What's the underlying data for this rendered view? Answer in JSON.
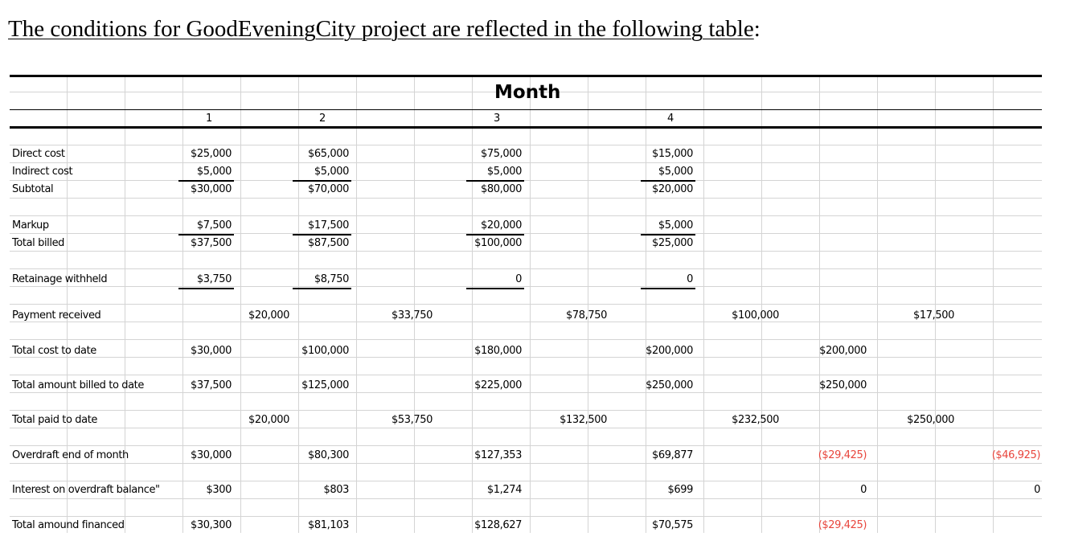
{
  "heading": {
    "prefix": "The conditions for GoodEveningCity project are reflected in the following table",
    "suffix": ":"
  },
  "table": {
    "month_header": "Month",
    "month_numbers": [
      "1",
      "2",
      "3",
      "4"
    ],
    "rows": [
      {
        "label": "Direct cost",
        "values": [
          "$25,000",
          "$65,000",
          "$75,000",
          "$15,000"
        ]
      },
      {
        "label": "Indirect cost",
        "values": [
          "$5,000",
          "$5,000",
          "$5,000",
          "$5,000"
        ]
      },
      {
        "label": "Subtotal",
        "values": [
          "$30,000",
          "$70,000",
          "$80,000",
          "$20,000"
        ]
      },
      {
        "label": "Markup",
        "values": [
          "$7,500",
          "$17,500",
          "$20,000",
          "$5,000"
        ]
      },
      {
        "label": "Total billed",
        "values": [
          "$37,500",
          "$87,500",
          "$100,000",
          "$25,000"
        ]
      },
      {
        "label": "Retainage withheld",
        "values": [
          "$3,750",
          "$8,750",
          "0",
          "0"
        ]
      },
      {
        "label": "Payment received",
        "values": [
          "$20,000",
          "$33,750",
          "$78,750",
          "$100,000",
          "$17,500"
        ]
      },
      {
        "label": "Total cost to date",
        "values": [
          "$30,000",
          "$100,000",
          "$180,000",
          "$200,000",
          "$200,000"
        ]
      },
      {
        "label": "Total amount billed to date",
        "values": [
          "$37,500",
          "$125,000",
          "$225,000",
          "$250,000",
          "$250,000"
        ]
      },
      {
        "label": "Total paid to date",
        "values": [
          "$20,000",
          "$53,750",
          "$132,500",
          "$232,500",
          "$250,000"
        ]
      },
      {
        "label": "Overdraft end of month",
        "values": [
          "$30,000",
          "$80,300",
          "$127,353",
          "$69,877",
          "($29,425)",
          "($46,925)"
        ]
      },
      {
        "label": "Interest on overdraft balance\"",
        "values": [
          "$300",
          "$803",
          "$1,274",
          "$699",
          "0",
          "0"
        ]
      },
      {
        "label": "Total amound financed",
        "values": [
          "$30,300",
          "$81,103",
          "$128,627",
          "$70,575",
          "($29,425)"
        ]
      }
    ]
  },
  "colors": {
    "negative": "#e8453c",
    "gridline": "#d4d4d4"
  }
}
